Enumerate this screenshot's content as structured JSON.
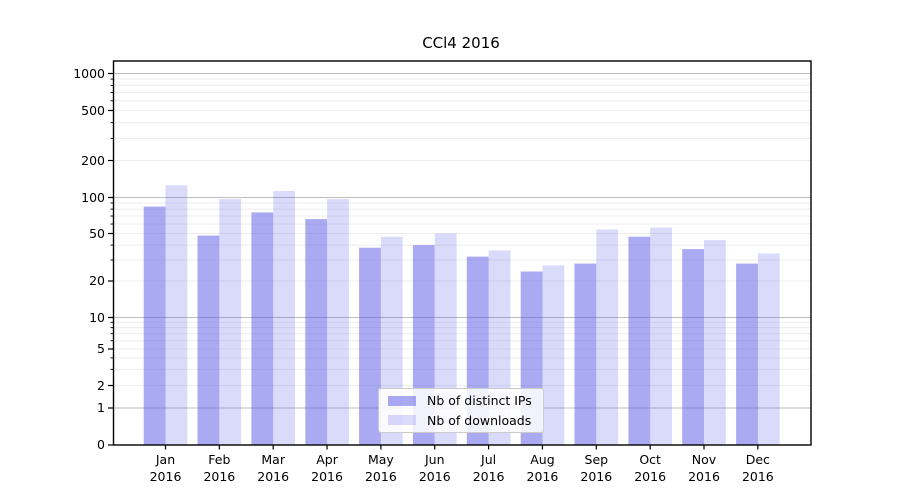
{
  "chart_data": {
    "type": "bar",
    "title": "CCl4 2016",
    "categories": [
      "Jan",
      "Feb",
      "Mar",
      "Apr",
      "May",
      "Jun",
      "Jul",
      "Aug",
      "Sep",
      "Oct",
      "Nov",
      "Dec"
    ],
    "year_label": "2016",
    "series": [
      {
        "name": "Nb of distinct IPs",
        "color": "#5555e6",
        "alpha": 0.5,
        "values": [
          84,
          48,
          75,
          66,
          38,
          40,
          32,
          24,
          28,
          47,
          37,
          28
        ]
      },
      {
        "name": "Nb of downloads",
        "color": "#5555e6",
        "alpha": 0.22,
        "values": [
          126,
          97,
          113,
          97,
          47,
          50,
          36,
          27,
          54,
          56,
          44,
          34
        ]
      }
    ],
    "yscale": "symlog",
    "yticks": [
      0,
      1,
      2,
      5,
      10,
      20,
      50,
      100,
      200,
      500,
      1000
    ],
    "ylim": [
      0,
      1500
    ],
    "xlabel": "",
    "ylabel": "",
    "grid": true,
    "legend_position": "lower center",
    "colors": {
      "major_grid": "#bdbdbd",
      "minor_grid": "#ececec",
      "spine": "#000000",
      "background": "#ffffff"
    }
  }
}
